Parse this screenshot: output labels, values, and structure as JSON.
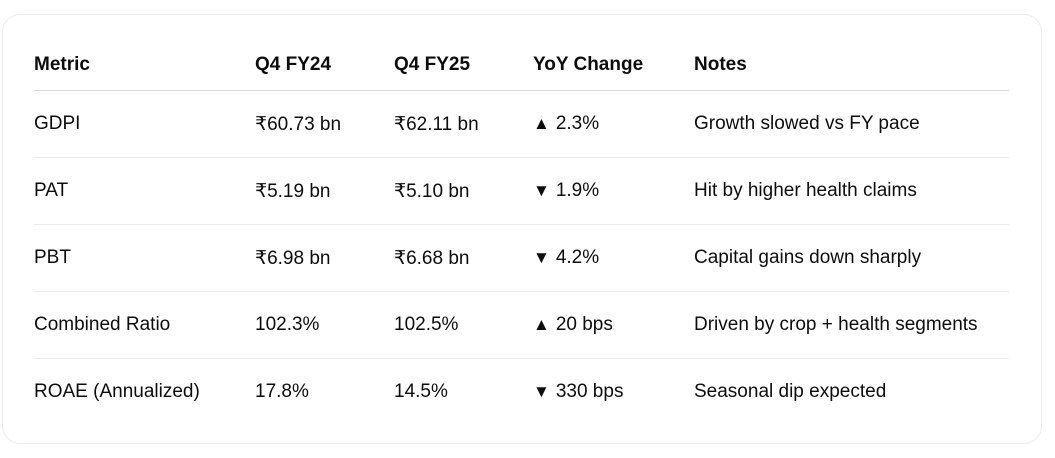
{
  "table": {
    "headers": [
      "Metric",
      "Q4 FY24",
      "Q4 FY25",
      "YoY Change",
      "Notes"
    ],
    "rows": [
      {
        "metric": "GDPI",
        "q4fy24": "₹60.73 bn",
        "q4fy25": "₹62.11 bn",
        "arrow": "▲",
        "change": "2.3%",
        "notes": "Growth slowed vs FY pace"
      },
      {
        "metric": "PAT",
        "q4fy24": "₹5.19 bn",
        "q4fy25": "₹5.10 bn",
        "arrow": "▼",
        "change": "1.9%",
        "notes": "Hit by higher health claims"
      },
      {
        "metric": "PBT",
        "q4fy24": "₹6.98 bn",
        "q4fy25": "₹6.68 bn",
        "arrow": "▼",
        "change": "4.2%",
        "notes": "Capital gains down sharply"
      },
      {
        "metric": "Combined Ratio",
        "q4fy24": "102.3%",
        "q4fy25": "102.5%",
        "arrow": "▲",
        "change": "20 bps",
        "notes": "Driven by crop + health segments"
      },
      {
        "metric": "ROAE (Annualized)",
        "q4fy24": "17.8%",
        "q4fy25": "14.5%",
        "arrow": "▼",
        "change": "330 bps",
        "notes": "Seasonal dip expected"
      }
    ]
  }
}
